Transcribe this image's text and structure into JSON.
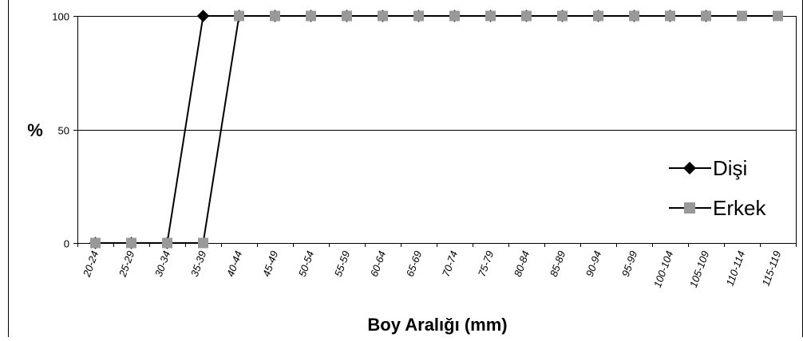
{
  "chart_data": {
    "type": "line",
    "title": "",
    "xlabel": "Boy Aralığı (mm)",
    "ylabel": "%",
    "ylim": [
      0,
      100
    ],
    "yticks": [
      0,
      50,
      100
    ],
    "grid": true,
    "legend_position": "right",
    "categories": [
      "20-24",
      "25-29",
      "30-34",
      "35-39",
      "40-44",
      "45-49",
      "50-54",
      "55-59",
      "60-64",
      "65-69",
      "70-74",
      "75-79",
      "80-84",
      "85-89",
      "90-94",
      "95-99",
      "100-104",
      "105-109",
      "110-114",
      "115-119"
    ],
    "series": [
      {
        "name": "Dişi",
        "marker": "diamond",
        "color": "#000000",
        "values": [
          0,
          0,
          0,
          100,
          100,
          100,
          100,
          100,
          100,
          100,
          100,
          100,
          100,
          100,
          100,
          100,
          100,
          100,
          null,
          null
        ]
      },
      {
        "name": "Erkek",
        "marker": "square",
        "color": "#999999",
        "values": [
          0,
          0,
          0,
          0,
          100,
          100,
          100,
          100,
          100,
          100,
          100,
          100,
          100,
          100,
          100,
          100,
          100,
          100,
          100,
          100
        ]
      }
    ]
  }
}
